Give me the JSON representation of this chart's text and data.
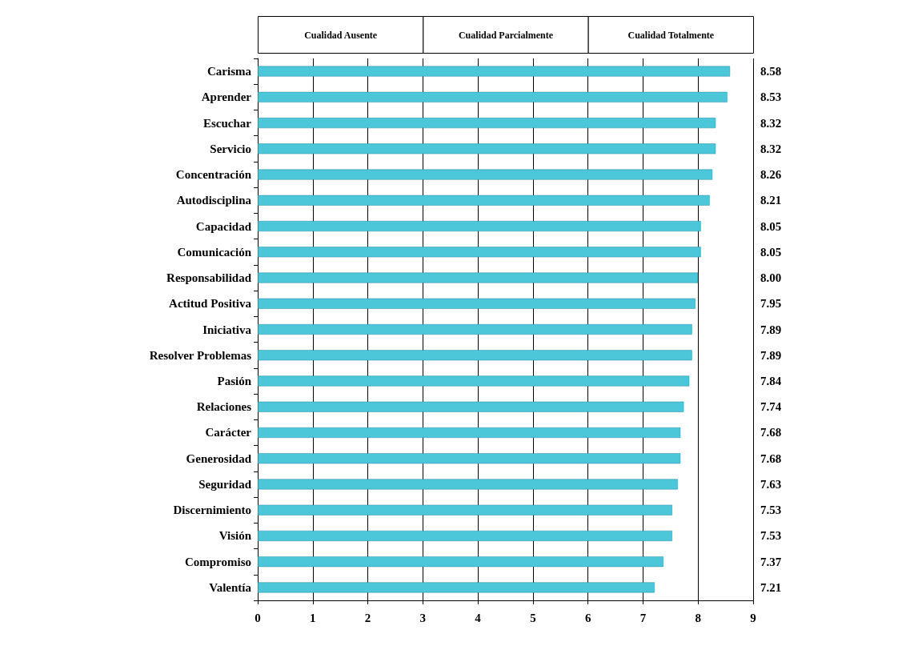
{
  "chart_data": {
    "type": "bar",
    "orientation": "horizontal",
    "categories": [
      "Carisma",
      "Aprender",
      "Escuchar",
      "Servicio",
      "Concentración",
      "Autodisciplina",
      "Capacidad",
      "Comunicación",
      "Responsabilidad",
      "Actitud Positiva",
      "Iniciativa",
      "Resolver Problemas",
      "Pasión",
      "Relaciones",
      "Carácter",
      "Generosidad",
      "Seguridad",
      "Discernimiento",
      "Visión",
      "Compromiso",
      "Valentía"
    ],
    "values": [
      8.58,
      8.53,
      8.32,
      8.32,
      8.26,
      8.21,
      8.05,
      8.05,
      8.0,
      7.95,
      7.89,
      7.89,
      7.84,
      7.74,
      7.68,
      7.68,
      7.63,
      7.53,
      7.53,
      7.37,
      7.21
    ],
    "value_labels": [
      "8.58",
      "8.53",
      "8.32",
      "8.32",
      "8.26",
      "8.21",
      "8.05",
      "8.05",
      "8.00",
      "7.95",
      "7.89",
      "7.89",
      "7.84",
      "7.74",
      "7.68",
      "7.68",
      "7.63",
      "7.53",
      "7.53",
      "7.37",
      "7.21"
    ],
    "color": "#4cc6d9",
    "xlim": [
      0,
      9
    ],
    "xticks": [
      0,
      1,
      2,
      3,
      4,
      5,
      6,
      7,
      8,
      9
    ],
    "annotations": [
      "Cualidad Ausente",
      "Cualidad Parcialmente",
      "Cualidad Totalmente"
    ],
    "grid": "x"
  }
}
